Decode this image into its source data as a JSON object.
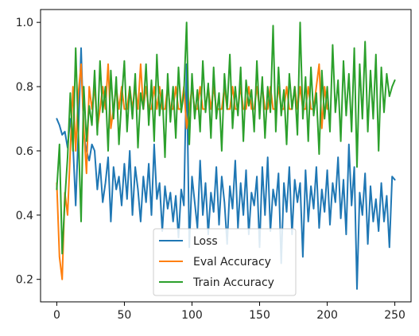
{
  "chart_data": {
    "type": "line",
    "title": "",
    "xlabel": "",
    "ylabel": "",
    "xlim": [
      -12,
      262
    ],
    "ylim": [
      0.13,
      1.04
    ],
    "xticks": [
      0,
      50,
      100,
      150,
      200,
      250
    ],
    "yticks": [
      0.2,
      0.4,
      0.6,
      0.8,
      1.0
    ],
    "xtick_labels": [
      "0",
      "50",
      "100",
      "150",
      "200",
      "250"
    ],
    "ytick_labels": [
      "0.2",
      "0.4",
      "0.6",
      "0.8",
      "1.0"
    ],
    "grid": false,
    "legend_position": "lower-center",
    "series": [
      {
        "name": "Loss",
        "color": "#1f77b4",
        "x": [
          0,
          2,
          4,
          6,
          8,
          10,
          12,
          14,
          16,
          18,
          20,
          22,
          24,
          26,
          28,
          30,
          32,
          34,
          36,
          38,
          40,
          42,
          44,
          46,
          48,
          50,
          52,
          54,
          56,
          58,
          60,
          62,
          64,
          66,
          68,
          70,
          72,
          74,
          76,
          78,
          80,
          82,
          84,
          86,
          88,
          90,
          92,
          94,
          96,
          98,
          100,
          102,
          104,
          106,
          108,
          110,
          112,
          114,
          116,
          118,
          120,
          122,
          124,
          126,
          128,
          130,
          132,
          134,
          136,
          138,
          140,
          142,
          144,
          146,
          148,
          150,
          152,
          154,
          156,
          158,
          160,
          162,
          164,
          166,
          168,
          170,
          172,
          174,
          176,
          178,
          180,
          182,
          184,
          186,
          188,
          190,
          192,
          194,
          196,
          198,
          200,
          202,
          204,
          206,
          208,
          210,
          212,
          214,
          216,
          218,
          220,
          222,
          224,
          226,
          228,
          230,
          232,
          234,
          236,
          238,
          240,
          242,
          244,
          246,
          248,
          250
        ],
        "values": [
          0.7,
          0.68,
          0.65,
          0.66,
          0.61,
          0.7,
          0.62,
          0.43,
          0.66,
          0.92,
          0.65,
          0.6,
          0.57,
          0.62,
          0.6,
          0.48,
          0.56,
          0.44,
          0.5,
          0.58,
          0.38,
          0.55,
          0.48,
          0.52,
          0.43,
          0.56,
          0.45,
          0.6,
          0.4,
          0.55,
          0.48,
          0.38,
          0.52,
          0.44,
          0.56,
          0.4,
          0.62,
          0.45,
          0.5,
          0.35,
          0.49,
          0.42,
          0.47,
          0.38,
          0.46,
          0.33,
          0.48,
          0.43,
          0.87,
          0.3,
          0.52,
          0.44,
          0.36,
          0.57,
          0.4,
          0.5,
          0.34,
          0.47,
          0.41,
          0.55,
          0.37,
          0.52,
          0.44,
          0.31,
          0.49,
          0.42,
          0.57,
          0.36,
          0.5,
          0.4,
          0.54,
          0.34,
          0.47,
          0.43,
          0.52,
          0.3,
          0.55,
          0.4,
          0.58,
          0.35,
          0.48,
          0.43,
          0.53,
          0.25,
          0.5,
          0.41,
          0.55,
          0.34,
          0.51,
          0.44,
          0.5,
          0.27,
          0.54,
          0.38,
          0.49,
          0.42,
          0.55,
          0.36,
          0.48,
          0.41,
          0.54,
          0.37,
          0.5,
          0.44,
          0.58,
          0.39,
          0.51,
          0.34,
          0.62,
          0.43,
          0.55,
          0.17,
          0.47,
          0.4,
          0.53,
          0.31,
          0.49,
          0.38,
          0.45,
          0.35,
          0.5,
          0.38,
          0.46,
          0.3,
          0.52,
          0.51
        ]
      },
      {
        "name": "Eval Accuracy",
        "color": "#ff7f0e",
        "x": [
          0,
          2,
          4,
          6,
          8,
          10,
          12,
          14,
          16,
          18,
          20,
          22,
          24,
          26,
          28,
          30,
          32,
          34,
          36,
          38,
          40,
          42,
          44,
          46,
          48,
          50,
          52,
          54,
          56,
          58,
          60,
          62,
          64,
          66,
          68,
          70,
          72,
          74,
          76,
          78,
          80,
          82,
          84,
          86,
          88,
          90,
          92,
          94,
          96,
          98,
          100,
          102,
          104,
          106,
          108,
          110,
          112,
          114,
          116,
          118,
          120,
          122,
          124,
          126,
          128,
          130,
          132,
          134,
          136,
          138,
          140,
          142,
          144,
          146,
          148,
          150,
          152,
          154,
          156,
          158,
          160,
          162,
          164,
          166,
          168,
          170,
          172,
          174,
          176,
          178,
          180,
          182,
          184,
          186,
          188,
          190,
          192,
          194,
          196,
          198,
          200
        ],
        "values": [
          0.5,
          0.27,
          0.2,
          0.47,
          0.4,
          0.6,
          0.8,
          0.6,
          0.78,
          0.87,
          0.67,
          0.53,
          0.8,
          0.73,
          0.8,
          0.67,
          0.73,
          0.8,
          0.73,
          0.87,
          0.67,
          0.73,
          0.8,
          0.73,
          0.8,
          0.73,
          0.73,
          0.8,
          0.73,
          0.8,
          0.73,
          0.87,
          0.73,
          0.8,
          0.73,
          0.73,
          0.8,
          0.73,
          0.8,
          0.73,
          0.73,
          0.8,
          0.73,
          0.73,
          0.8,
          0.73,
          0.73,
          0.8,
          0.67,
          0.73,
          0.8,
          0.73,
          0.73,
          0.8,
          0.73,
          0.73,
          0.8,
          0.73,
          0.8,
          0.73,
          0.73,
          0.73,
          0.8,
          0.73,
          0.73,
          0.8,
          0.73,
          0.73,
          0.8,
          0.73,
          0.73,
          0.8,
          0.73,
          0.73,
          0.8,
          0.73,
          0.8,
          0.73,
          0.73,
          0.8,
          0.73,
          0.73,
          0.8,
          0.73,
          0.73,
          0.8,
          0.73,
          0.73,
          0.8,
          0.73,
          0.8,
          0.73,
          0.73,
          0.8,
          0.73,
          0.73,
          0.8,
          0.87,
          0.67,
          0.8,
          0.73
        ]
      },
      {
        "name": "Train Accuracy",
        "color": "#2ca02c",
        "x": [
          0,
          2,
          4,
          6,
          8,
          10,
          12,
          14,
          16,
          18,
          20,
          22,
          24,
          26,
          28,
          30,
          32,
          34,
          36,
          38,
          40,
          42,
          44,
          46,
          48,
          50,
          52,
          54,
          56,
          58,
          60,
          62,
          64,
          66,
          68,
          70,
          72,
          74,
          76,
          78,
          80,
          82,
          84,
          86,
          88,
          90,
          92,
          94,
          96,
          98,
          100,
          102,
          104,
          106,
          108,
          110,
          112,
          114,
          116,
          118,
          120,
          122,
          124,
          126,
          128,
          130,
          132,
          134,
          136,
          138,
          140,
          142,
          144,
          146,
          148,
          150,
          152,
          154,
          156,
          158,
          160,
          162,
          164,
          166,
          168,
          170,
          172,
          174,
          176,
          178,
          180,
          182,
          184,
          186,
          188,
          190,
          192,
          194,
          196,
          198,
          200,
          202,
          204,
          206,
          208,
          210,
          212,
          214,
          216,
          218,
          220,
          222,
          224,
          226,
          228,
          230,
          232,
          234,
          236,
          238,
          240,
          242,
          244,
          246,
          248,
          250
        ],
        "values": [
          0.48,
          0.62,
          0.28,
          0.45,
          0.58,
          0.78,
          0.6,
          0.92,
          0.65,
          0.38,
          0.8,
          0.63,
          0.74,
          0.68,
          0.85,
          0.65,
          0.88,
          0.72,
          0.8,
          0.6,
          0.85,
          0.7,
          0.83,
          0.62,
          0.76,
          0.88,
          0.66,
          0.8,
          0.7,
          0.84,
          0.61,
          0.78,
          0.73,
          0.87,
          0.68,
          0.82,
          0.63,
          0.9,
          0.71,
          0.79,
          0.58,
          0.84,
          0.69,
          0.8,
          0.64,
          0.86,
          0.72,
          0.78,
          1.0,
          0.62,
          0.84,
          0.7,
          0.79,
          0.66,
          0.88,
          0.72,
          0.81,
          0.64,
          0.86,
          0.7,
          0.78,
          0.6,
          0.84,
          0.73,
          0.9,
          0.67,
          0.8,
          0.71,
          0.86,
          0.63,
          0.82,
          0.74,
          0.79,
          0.66,
          0.88,
          0.7,
          0.83,
          0.64,
          0.8,
          0.72,
          0.99,
          0.66,
          0.86,
          0.71,
          0.79,
          0.62,
          0.84,
          0.73,
          0.8,
          0.65,
          1.0,
          0.7,
          0.83,
          0.63,
          0.86,
          0.71,
          0.78,
          0.59,
          0.85,
          0.7,
          0.8,
          0.66,
          0.93,
          0.72,
          0.82,
          0.63,
          0.88,
          0.71,
          0.84,
          0.66,
          0.92,
          0.55,
          0.87,
          0.7,
          0.94,
          0.66,
          0.85,
          0.7,
          0.9,
          0.6,
          0.86,
          0.72,
          0.84,
          0.77,
          0.8,
          0.82
        ]
      }
    ]
  }
}
